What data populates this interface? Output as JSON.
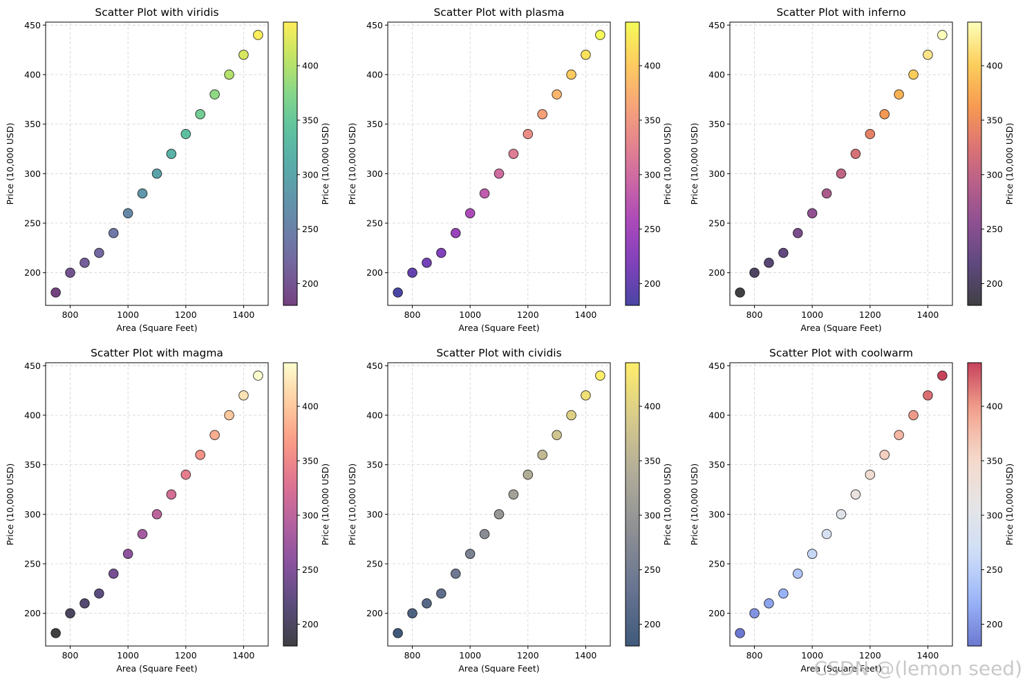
{
  "watermark": "CSDN @(lemon seed)",
  "chart_data": [
    {
      "type": "scatter",
      "title": "Scatter Plot with viridis",
      "xlabel": "Area (Square Feet)",
      "ylabel": "Price (10,000 USD)",
      "colorbar_label": "Price (10,000 USD)",
      "colormap": "viridis",
      "x": [
        750,
        800,
        850,
        900,
        950,
        1000,
        1050,
        1100,
        1150,
        1200,
        1250,
        1300,
        1350,
        1400,
        1450
      ],
      "y": [
        180,
        200,
        210,
        220,
        240,
        260,
        280,
        300,
        320,
        340,
        360,
        380,
        400,
        420,
        440
      ],
      "xlim": [
        715,
        1485
      ],
      "ylim": [
        167,
        453
      ],
      "xticks": [
        800,
        1000,
        1200,
        1400
      ],
      "yticks": [
        200,
        250,
        300,
        350,
        400,
        450
      ],
      "colorbar_range": [
        180,
        440
      ],
      "colorbar_ticks": [
        200,
        250,
        300,
        350,
        400
      ],
      "colors": [
        "#440154",
        "#472d7b",
        "#3b528b",
        "#2c728e",
        "#21918c",
        "#28ae80",
        "#5ec962",
        "#addc30",
        "#fde725"
      ],
      "grid": true
    },
    {
      "type": "scatter",
      "title": "Scatter Plot with plasma",
      "xlabel": "Area (Square Feet)",
      "ylabel": "Price (10,000 USD)",
      "colorbar_label": "Price (10,000 USD)",
      "colormap": "plasma",
      "x": [
        750,
        800,
        850,
        900,
        950,
        1000,
        1050,
        1100,
        1150,
        1200,
        1250,
        1300,
        1350,
        1400,
        1450
      ],
      "y": [
        180,
        200,
        210,
        220,
        240,
        260,
        280,
        300,
        320,
        340,
        360,
        380,
        400,
        420,
        440
      ],
      "xlim": [
        715,
        1485
      ],
      "ylim": [
        167,
        453
      ],
      "xticks": [
        800,
        1000,
        1200,
        1400
      ],
      "yticks": [
        200,
        250,
        300,
        350,
        400,
        450
      ],
      "colorbar_range": [
        180,
        440
      ],
      "colorbar_ticks": [
        200,
        250,
        300,
        350,
        400
      ],
      "colors": [
        "#0d0887",
        "#5302a3",
        "#8b0aa5",
        "#b83289",
        "#db5c68",
        "#f48849",
        "#febd2a",
        "#f0f921"
      ],
      "grid": true
    },
    {
      "type": "scatter",
      "title": "Scatter Plot with inferno",
      "xlabel": "Area (Square Feet)",
      "ylabel": "Price (10,000 USD)",
      "colorbar_label": "Price (10,000 USD)",
      "colormap": "inferno",
      "x": [
        750,
        800,
        850,
        900,
        950,
        1000,
        1050,
        1100,
        1150,
        1200,
        1250,
        1300,
        1350,
        1400,
        1450
      ],
      "y": [
        180,
        200,
        210,
        220,
        240,
        260,
        280,
        300,
        320,
        340,
        360,
        380,
        400,
        420,
        440
      ],
      "xlim": [
        715,
        1485
      ],
      "ylim": [
        167,
        453
      ],
      "xticks": [
        800,
        1000,
        1200,
        1400
      ],
      "yticks": [
        200,
        250,
        300,
        350,
        400,
        450
      ],
      "colorbar_range": [
        180,
        440
      ],
      "colorbar_ticks": [
        200,
        250,
        300,
        350,
        400
      ],
      "colors": [
        "#000004",
        "#280b54",
        "#65156e",
        "#9f2a63",
        "#d44842",
        "#f57d15",
        "#fac127",
        "#fcffa4"
      ],
      "grid": true
    },
    {
      "type": "scatter",
      "title": "Scatter Plot with magma",
      "xlabel": "Area (Square Feet)",
      "ylabel": "Price (10,000 USD)",
      "colorbar_label": "Price (10,000 USD)",
      "colormap": "magma",
      "x": [
        750,
        800,
        850,
        900,
        950,
        1000,
        1050,
        1100,
        1150,
        1200,
        1250,
        1300,
        1350,
        1400,
        1450
      ],
      "y": [
        180,
        200,
        210,
        220,
        240,
        260,
        280,
        300,
        320,
        340,
        360,
        380,
        400,
        420,
        440
      ],
      "xlim": [
        715,
        1485
      ],
      "ylim": [
        167,
        453
      ],
      "xticks": [
        800,
        1000,
        1200,
        1400
      ],
      "yticks": [
        200,
        250,
        300,
        350,
        400,
        450
      ],
      "colorbar_range": [
        180,
        440
      ],
      "colorbar_ticks": [
        200,
        250,
        300,
        350,
        400
      ],
      "colors": [
        "#000004",
        "#221150",
        "#5f187f",
        "#982d80",
        "#d3436e",
        "#f8765c",
        "#febb81",
        "#fcfdbf"
      ],
      "grid": true
    },
    {
      "type": "scatter",
      "title": "Scatter Plot with cividis",
      "xlabel": "Area (Square Feet)",
      "ylabel": "Price (10,000 USD)",
      "colorbar_label": "Price (10,000 USD)",
      "colormap": "cividis",
      "x": [
        750,
        800,
        850,
        900,
        950,
        1000,
        1050,
        1100,
        1150,
        1200,
        1250,
        1300,
        1350,
        1400,
        1450
      ],
      "y": [
        180,
        200,
        210,
        220,
        240,
        260,
        280,
        300,
        320,
        340,
        360,
        380,
        400,
        420,
        440
      ],
      "xlim": [
        715,
        1485
      ],
      "ylim": [
        167,
        453
      ],
      "xticks": [
        800,
        1000,
        1200,
        1400
      ],
      "yticks": [
        200,
        250,
        300,
        350,
        400,
        450
      ],
      "colorbar_range": [
        180,
        440
      ],
      "colorbar_ticks": [
        200,
        250,
        300,
        350,
        400
      ],
      "colors": [
        "#00224e",
        "#35456c",
        "#666970",
        "#948e77",
        "#c8b866",
        "#fee838"
      ],
      "grid": true
    },
    {
      "type": "scatter",
      "title": "Scatter Plot with coolwarm",
      "xlabel": "Area (Square Feet)",
      "ylabel": "Price (10,000 USD)",
      "colorbar_label": "Price (10,000 USD)",
      "colormap": "coolwarm",
      "x": [
        750,
        800,
        850,
        900,
        950,
        1000,
        1050,
        1100,
        1150,
        1200,
        1250,
        1300,
        1350,
        1400,
        1450
      ],
      "y": [
        180,
        200,
        210,
        220,
        240,
        260,
        280,
        300,
        320,
        340,
        360,
        380,
        400,
        420,
        440
      ],
      "xlim": [
        715,
        1485
      ],
      "ylim": [
        167,
        453
      ],
      "xticks": [
        800,
        1000,
        1200,
        1400
      ],
      "yticks": [
        200,
        250,
        300,
        350,
        400,
        450
      ],
      "colorbar_range": [
        180,
        440
      ],
      "colorbar_ticks": [
        200,
        250,
        300,
        350,
        400
      ],
      "colors": [
        "#3b4cc0",
        "#7b9ff9",
        "#c0d4f5",
        "#dddcdc",
        "#f2cbb7",
        "#ee8468",
        "#b40426"
      ],
      "grid": true
    }
  ]
}
